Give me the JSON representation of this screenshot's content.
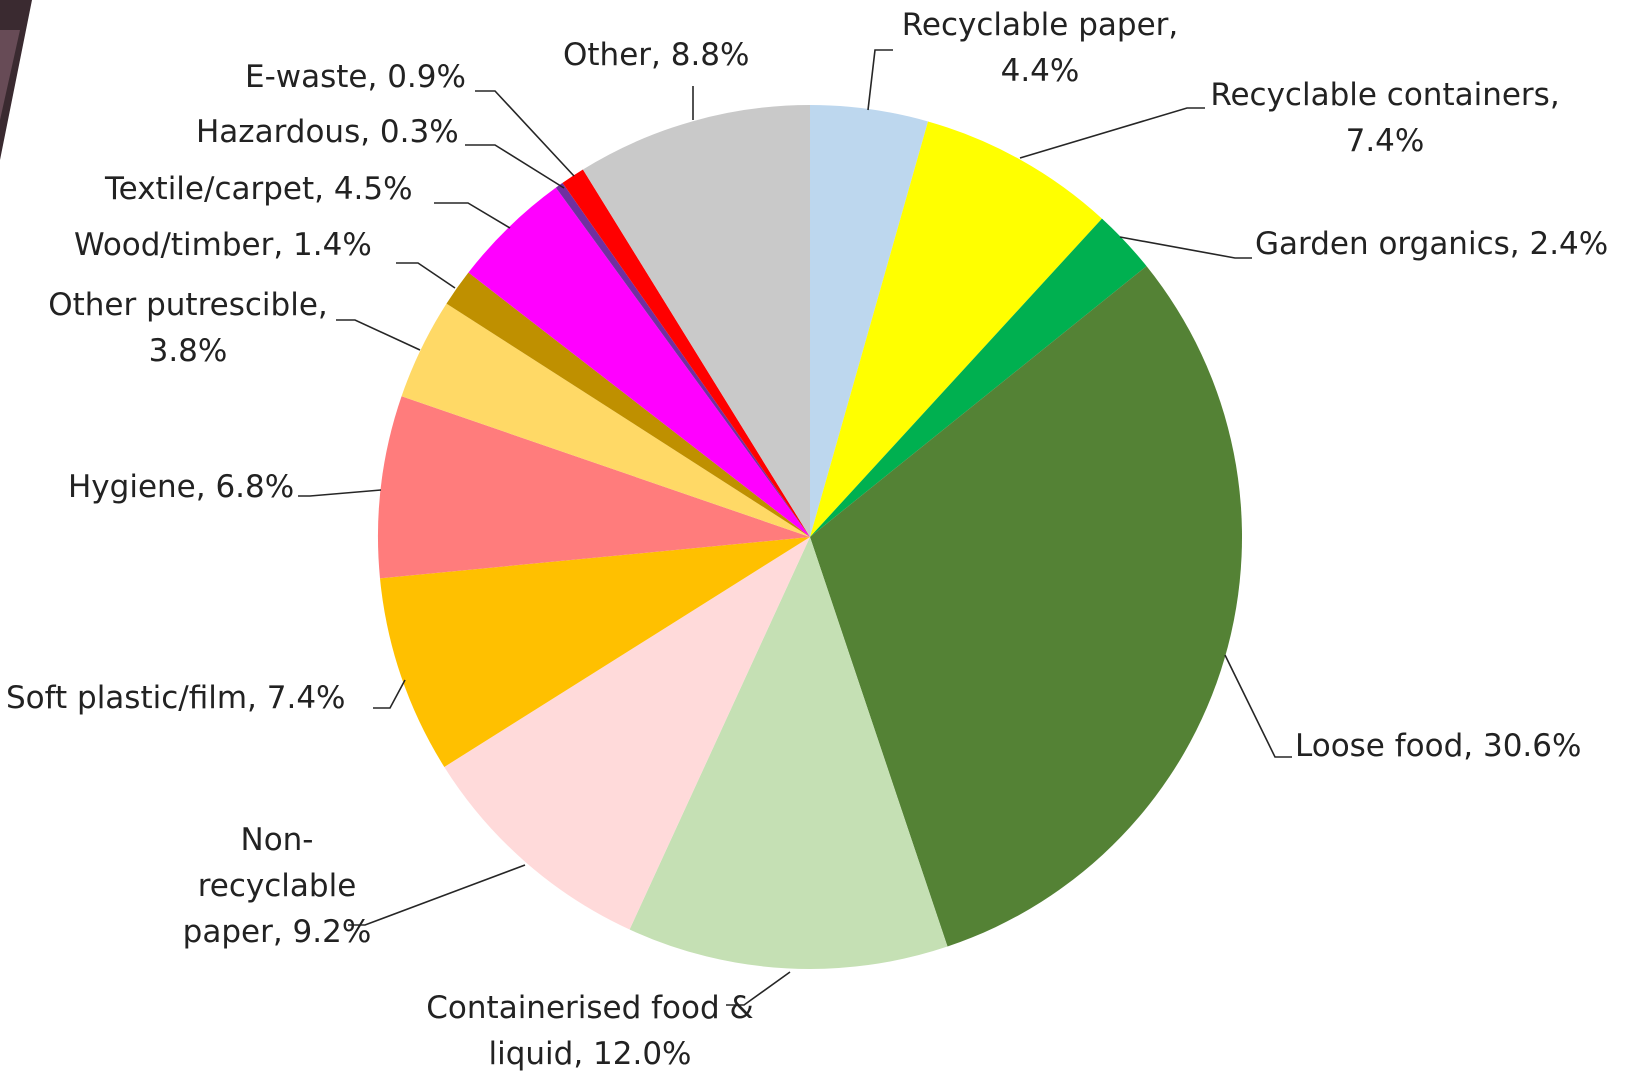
{
  "chart_data": {
    "type": "pie",
    "title": "",
    "start_angle_deg": 0,
    "direction": "clockwise",
    "slices": [
      {
        "label": "Recyclable paper",
        "value": 4.4,
        "value_label": "4.4%",
        "color": "#BDD7EE",
        "label_lines": [
          "Recyclable paper,",
          "4.4%"
        ]
      },
      {
        "label": "Recyclable containers",
        "value": 7.4,
        "value_label": "7.4%",
        "color": "#FFFF00",
        "label_lines": [
          "Recyclable containers,",
          "7.4%"
        ]
      },
      {
        "label": "Garden organics",
        "value": 2.4,
        "value_label": "2.4%",
        "color": "#00B050",
        "label_lines": [
          "Garden organics, 2.4%"
        ]
      },
      {
        "label": "Loose food",
        "value": 30.6,
        "value_label": "30.6%",
        "color": "#548235",
        "label_lines": [
          "Loose food, 30.6%"
        ]
      },
      {
        "label": "Containerised food & liquid",
        "value": 12.0,
        "value_label": "12.0%",
        "color": "#C5E0B4",
        "label_lines": [
          "Containerised food &",
          "liquid, 12.0%"
        ]
      },
      {
        "label": "Non-recyclable paper",
        "value": 9.2,
        "value_label": "9.2%",
        "color": "#FFDADA",
        "label_lines": [
          "Non-",
          "recyclable",
          "paper, 9.2%"
        ]
      },
      {
        "label": "Soft plastic/film",
        "value": 7.4,
        "value_label": "7.4%",
        "color": "#FFC000",
        "label_lines": [
          "Soft plastic/film, 7.4%"
        ]
      },
      {
        "label": "Hygiene",
        "value": 6.8,
        "value_label": "6.8%",
        "color": "#FF7C7C",
        "label_lines": [
          "Hygiene, 6.8%"
        ]
      },
      {
        "label": "Other putrescible",
        "value": 3.8,
        "value_label": "3.8%",
        "color": "#FFD966",
        "label_lines": [
          "Other putrescible,",
          "3.8%"
        ]
      },
      {
        "label": "Wood/timber",
        "value": 1.4,
        "value_label": "1.4%",
        "color": "#BF9000",
        "label_lines": [
          "Wood/timber, 1.4%"
        ]
      },
      {
        "label": "Textile/carpet",
        "value": 4.5,
        "value_label": "4.5%",
        "color": "#FF00FF",
        "label_lines": [
          "Textile/carpet, 4.5%"
        ]
      },
      {
        "label": "Hazardous",
        "value": 0.3,
        "value_label": "0.3%",
        "color": "#7030A0",
        "label_lines": [
          "Hazardous, 0.3%"
        ]
      },
      {
        "label": "E-waste",
        "value": 0.9,
        "value_label": "0.9%",
        "color": "#FF0000",
        "label_lines": [
          "E-waste, 0.9%"
        ]
      },
      {
        "label": "Other",
        "value": 8.8,
        "value_label": "8.8%",
        "color": "#C9C9C9",
        "label_lines": [
          "Other, 8.8%"
        ]
      }
    ]
  }
}
